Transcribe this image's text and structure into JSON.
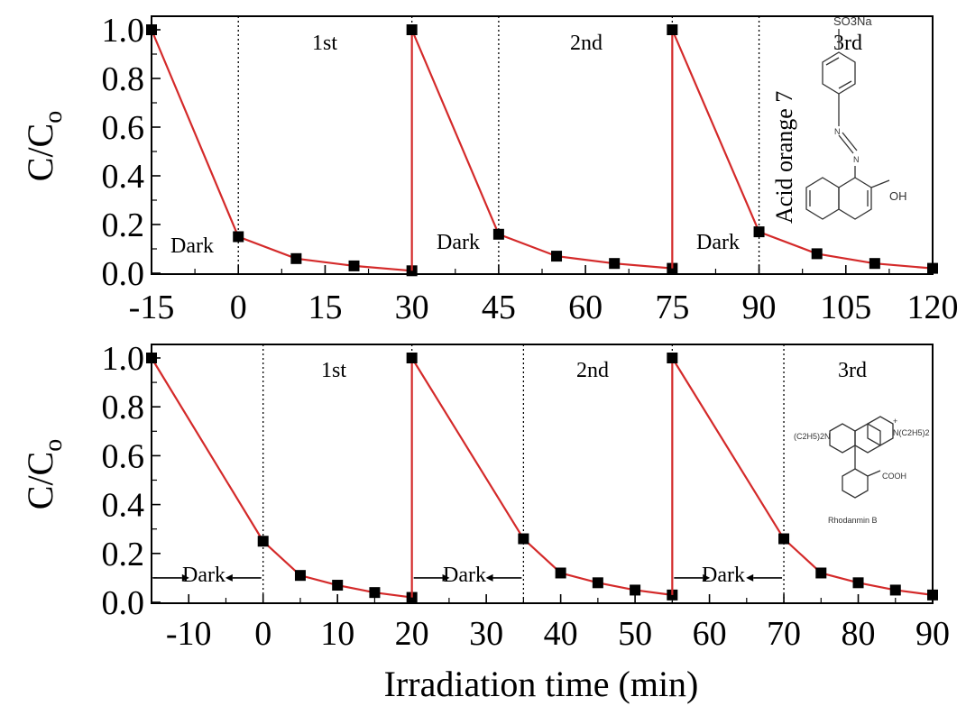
{
  "chart_data": [
    {
      "type": "line",
      "xlabel": "",
      "ylabel": "C/Co",
      "ylim": [
        0,
        1.0
      ],
      "xlim": [
        -15,
        120
      ],
      "xticks": [
        "-15",
        "0",
        "15",
        "30",
        "45",
        "60",
        "75",
        "90",
        "105",
        "120"
      ],
      "yticks": [
        "0.0",
        "0.2",
        "0.4",
        "0.6",
        "0.8",
        "1.0"
      ],
      "cycle_labels": [
        "1st",
        "2nd",
        "3rd"
      ],
      "dark_label": "Dark",
      "dye_name": "Acid orange 7",
      "structure_labels": {
        "sulfonate": "SO3Na",
        "hydroxyl": "OH",
        "azo_n": "N"
      },
      "cycles": [
        {
          "x": [
            -15,
            0,
            10,
            20,
            30
          ],
          "y": [
            1.0,
            0.15,
            0.06,
            0.03,
            0.01
          ]
        },
        {
          "x": [
            30,
            45,
            55,
            65,
            75
          ],
          "y": [
            1.0,
            0.16,
            0.07,
            0.04,
            0.02
          ]
        },
        {
          "x": [
            75,
            90,
            100,
            110,
            120
          ],
          "y": [
            1.0,
            0.17,
            0.08,
            0.04,
            0.02
          ]
        }
      ],
      "dividers": [
        0,
        30,
        45,
        75,
        90
      ],
      "grid": false
    },
    {
      "type": "line",
      "xlabel": "Irradiation time (min)",
      "ylabel": "C/Co",
      "ylim": [
        0,
        1.0
      ],
      "xlim": [
        -15,
        90
      ],
      "xticks": [
        "-10",
        "0",
        "10",
        "20",
        "30",
        "40",
        "50",
        "60",
        "70",
        "80",
        "90"
      ],
      "yticks": [
        "0.0",
        "0.2",
        "0.4",
        "0.6",
        "0.8",
        "1.0"
      ],
      "cycle_labels": [
        "1st",
        "2nd",
        "3rd"
      ],
      "dark_label": "Dark",
      "dye_name": "Rhodanmin B",
      "structure_labels": {
        "amine_left": "(C2H5)2N",
        "amine_right": "N(C2H5)2",
        "acid": "COOH",
        "charge": "+"
      },
      "cycles": [
        {
          "x": [
            -15,
            0,
            5,
            10,
            15,
            20
          ],
          "y": [
            1.0,
            0.25,
            0.11,
            0.07,
            0.04,
            0.02
          ]
        },
        {
          "x": [
            20,
            35,
            40,
            45,
            50,
            55
          ],
          "y": [
            1.0,
            0.26,
            0.12,
            0.08,
            0.05,
            0.03
          ]
        },
        {
          "x": [
            55,
            70,
            75,
            80,
            85,
            90
          ],
          "y": [
            1.0,
            0.26,
            0.12,
            0.08,
            0.05,
            0.03
          ]
        }
      ],
      "dividers": [
        0,
        20,
        35,
        55,
        70
      ],
      "dark_arrow_level": 0.1,
      "grid": false
    }
  ]
}
